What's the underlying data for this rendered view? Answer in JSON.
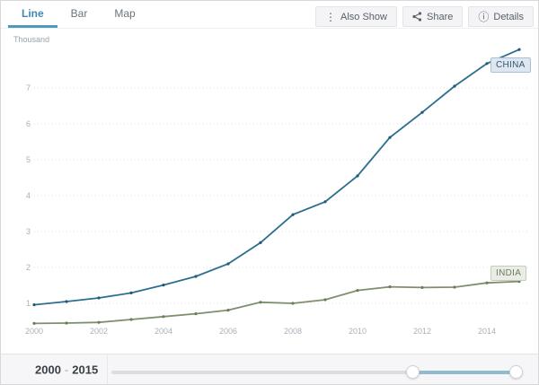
{
  "tabs": [
    {
      "label": "Line",
      "active": true
    },
    {
      "label": "Bar",
      "active": false
    },
    {
      "label": "Map",
      "active": false
    }
  ],
  "toolbar": {
    "also_show_label": "Also Show",
    "share_label": "Share",
    "details_label": "Details",
    "also_show_icon": "⋮",
    "details_icon": "ⓘ"
  },
  "colors": {
    "active_tab": "#3d89b4",
    "tab_underline": "#4f9ab6",
    "slider_selected": "#93bacd",
    "gridline": "#d9dde1",
    "tick_text": "#a9b1b9"
  },
  "chart_data": {
    "type": "line",
    "unit_label": "Thousand",
    "x": [
      2000,
      2001,
      2002,
      2003,
      2004,
      2005,
      2006,
      2007,
      2008,
      2009,
      2010,
      2011,
      2012,
      2013,
      2014,
      2015
    ],
    "xticks": [
      "2000",
      "2002",
      "2004",
      "2006",
      "2008",
      "2010",
      "2012",
      "2014"
    ],
    "yticks": [
      1,
      2,
      3,
      4,
      5,
      6,
      7
    ],
    "ylim": [
      0.4,
      8.2
    ],
    "grid": "dotted-horizontal",
    "legend_position": "end-of-line",
    "series": [
      {
        "name": "CHINA",
        "color": "#2e6e8e",
        "marker_color": "#1f5a77",
        "label_bg": "#dde7f1",
        "label_border": "#a9c0d4",
        "label_text": "#39566d",
        "values": [
          0.96,
          1.05,
          1.15,
          1.29,
          1.51,
          1.75,
          2.1,
          2.69,
          3.47,
          3.83,
          4.55,
          5.62,
          6.32,
          7.05,
          7.68,
          8.07
        ]
      },
      {
        "name": "INDIA",
        "color": "#7f8f6d",
        "marker_color": "#6d7d5c",
        "label_bg": "#e9ede5",
        "label_border": "#c2cdba",
        "label_text": "#6e7c64",
        "values": [
          0.44,
          0.45,
          0.47,
          0.55,
          0.63,
          0.71,
          0.81,
          1.03,
          1.0,
          1.1,
          1.36,
          1.46,
          1.44,
          1.45,
          1.57,
          1.61
        ]
      }
    ]
  },
  "range_bar": {
    "start": "2000",
    "separator": "-",
    "end": "2015"
  }
}
